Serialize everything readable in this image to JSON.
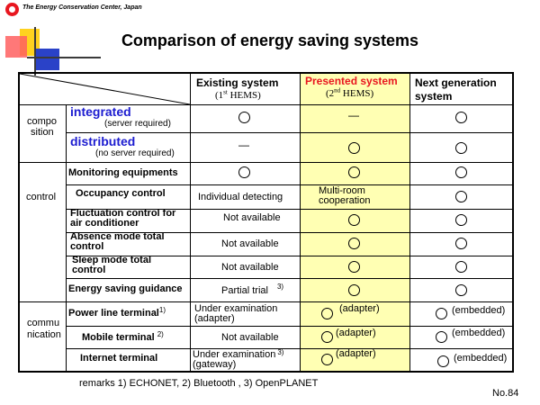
{
  "org_name": "The Energy Conservation Center, Japan",
  "title": "Comparison of energy saving systems",
  "columns": {
    "existing": {
      "label": "Existing system",
      "sub_prefix": "(1",
      "sub_sup": "st",
      "sub_suffix": " HEMS)"
    },
    "presented": {
      "label": "Presented system",
      "sub_prefix": "(2",
      "sub_sup": "nd",
      "sub_suffix": " HEMS)"
    },
    "next": {
      "label_line1": "Next generation",
      "label_line2": "system"
    }
  },
  "composition": {
    "label_line1": "compo",
    "label_line2": "sition",
    "integrated": {
      "label": "integrated",
      "sub": "(server required)",
      "existing": "",
      "presented": "—",
      "next": ""
    },
    "distributed": {
      "label": "distributed",
      "sub": "(no server required)",
      "existing": "—",
      "presented": "",
      "next": ""
    }
  },
  "control": {
    "label": "control",
    "monitoring": {
      "label": "Monitoring equipments"
    },
    "occupancy": {
      "label": "Occupancy control",
      "existing": "Individual detecting",
      "presented_line1": "Multi-room",
      "presented_line2": "cooperation"
    },
    "fluctuation": {
      "label_line1": "Fluctuation control for",
      "label_line2": "air conditioner",
      "existing": "Not available"
    },
    "absence": {
      "label_line1": "Absence mode total",
      "label_line2": "control",
      "existing": "Not available"
    },
    "sleep": {
      "label_line1": "Sleep mode total",
      "label_line2": "control",
      "existing": "Not available"
    },
    "guidance": {
      "label": "Energy saving guidance",
      "existing": "Partial trial",
      "existing_sup": "3)"
    }
  },
  "communication": {
    "label_line1": "commu",
    "label_line2": "nication",
    "power_line": {
      "label": "Power line terminal",
      "sup": "1)",
      "existing_line1": "Under examination",
      "existing_line2": "(adapter)",
      "presented": "(adapter)",
      "next": "(embedded)"
    },
    "mobile": {
      "label": "Mobile terminal",
      "sup": "2)",
      "existing": "Not available",
      "presented": "(adapter)",
      "next": "(embedded)"
    },
    "internet": {
      "label": "Internet terminal",
      "existing_line1": "Under examination",
      "existing_sup": "3)",
      "existing_line2": "(gateway)",
      "presented": "(adapter)",
      "next": "(embedded)"
    }
  },
  "remarks": "remarks  1) ECHONET, 2) Bluetooth , 3) OpenPLANET",
  "page_number": "No.84",
  "colors": {
    "highlight": "#ffffb3",
    "presented_header": "#e8161f",
    "accent_blue": "#1c1cd0"
  }
}
